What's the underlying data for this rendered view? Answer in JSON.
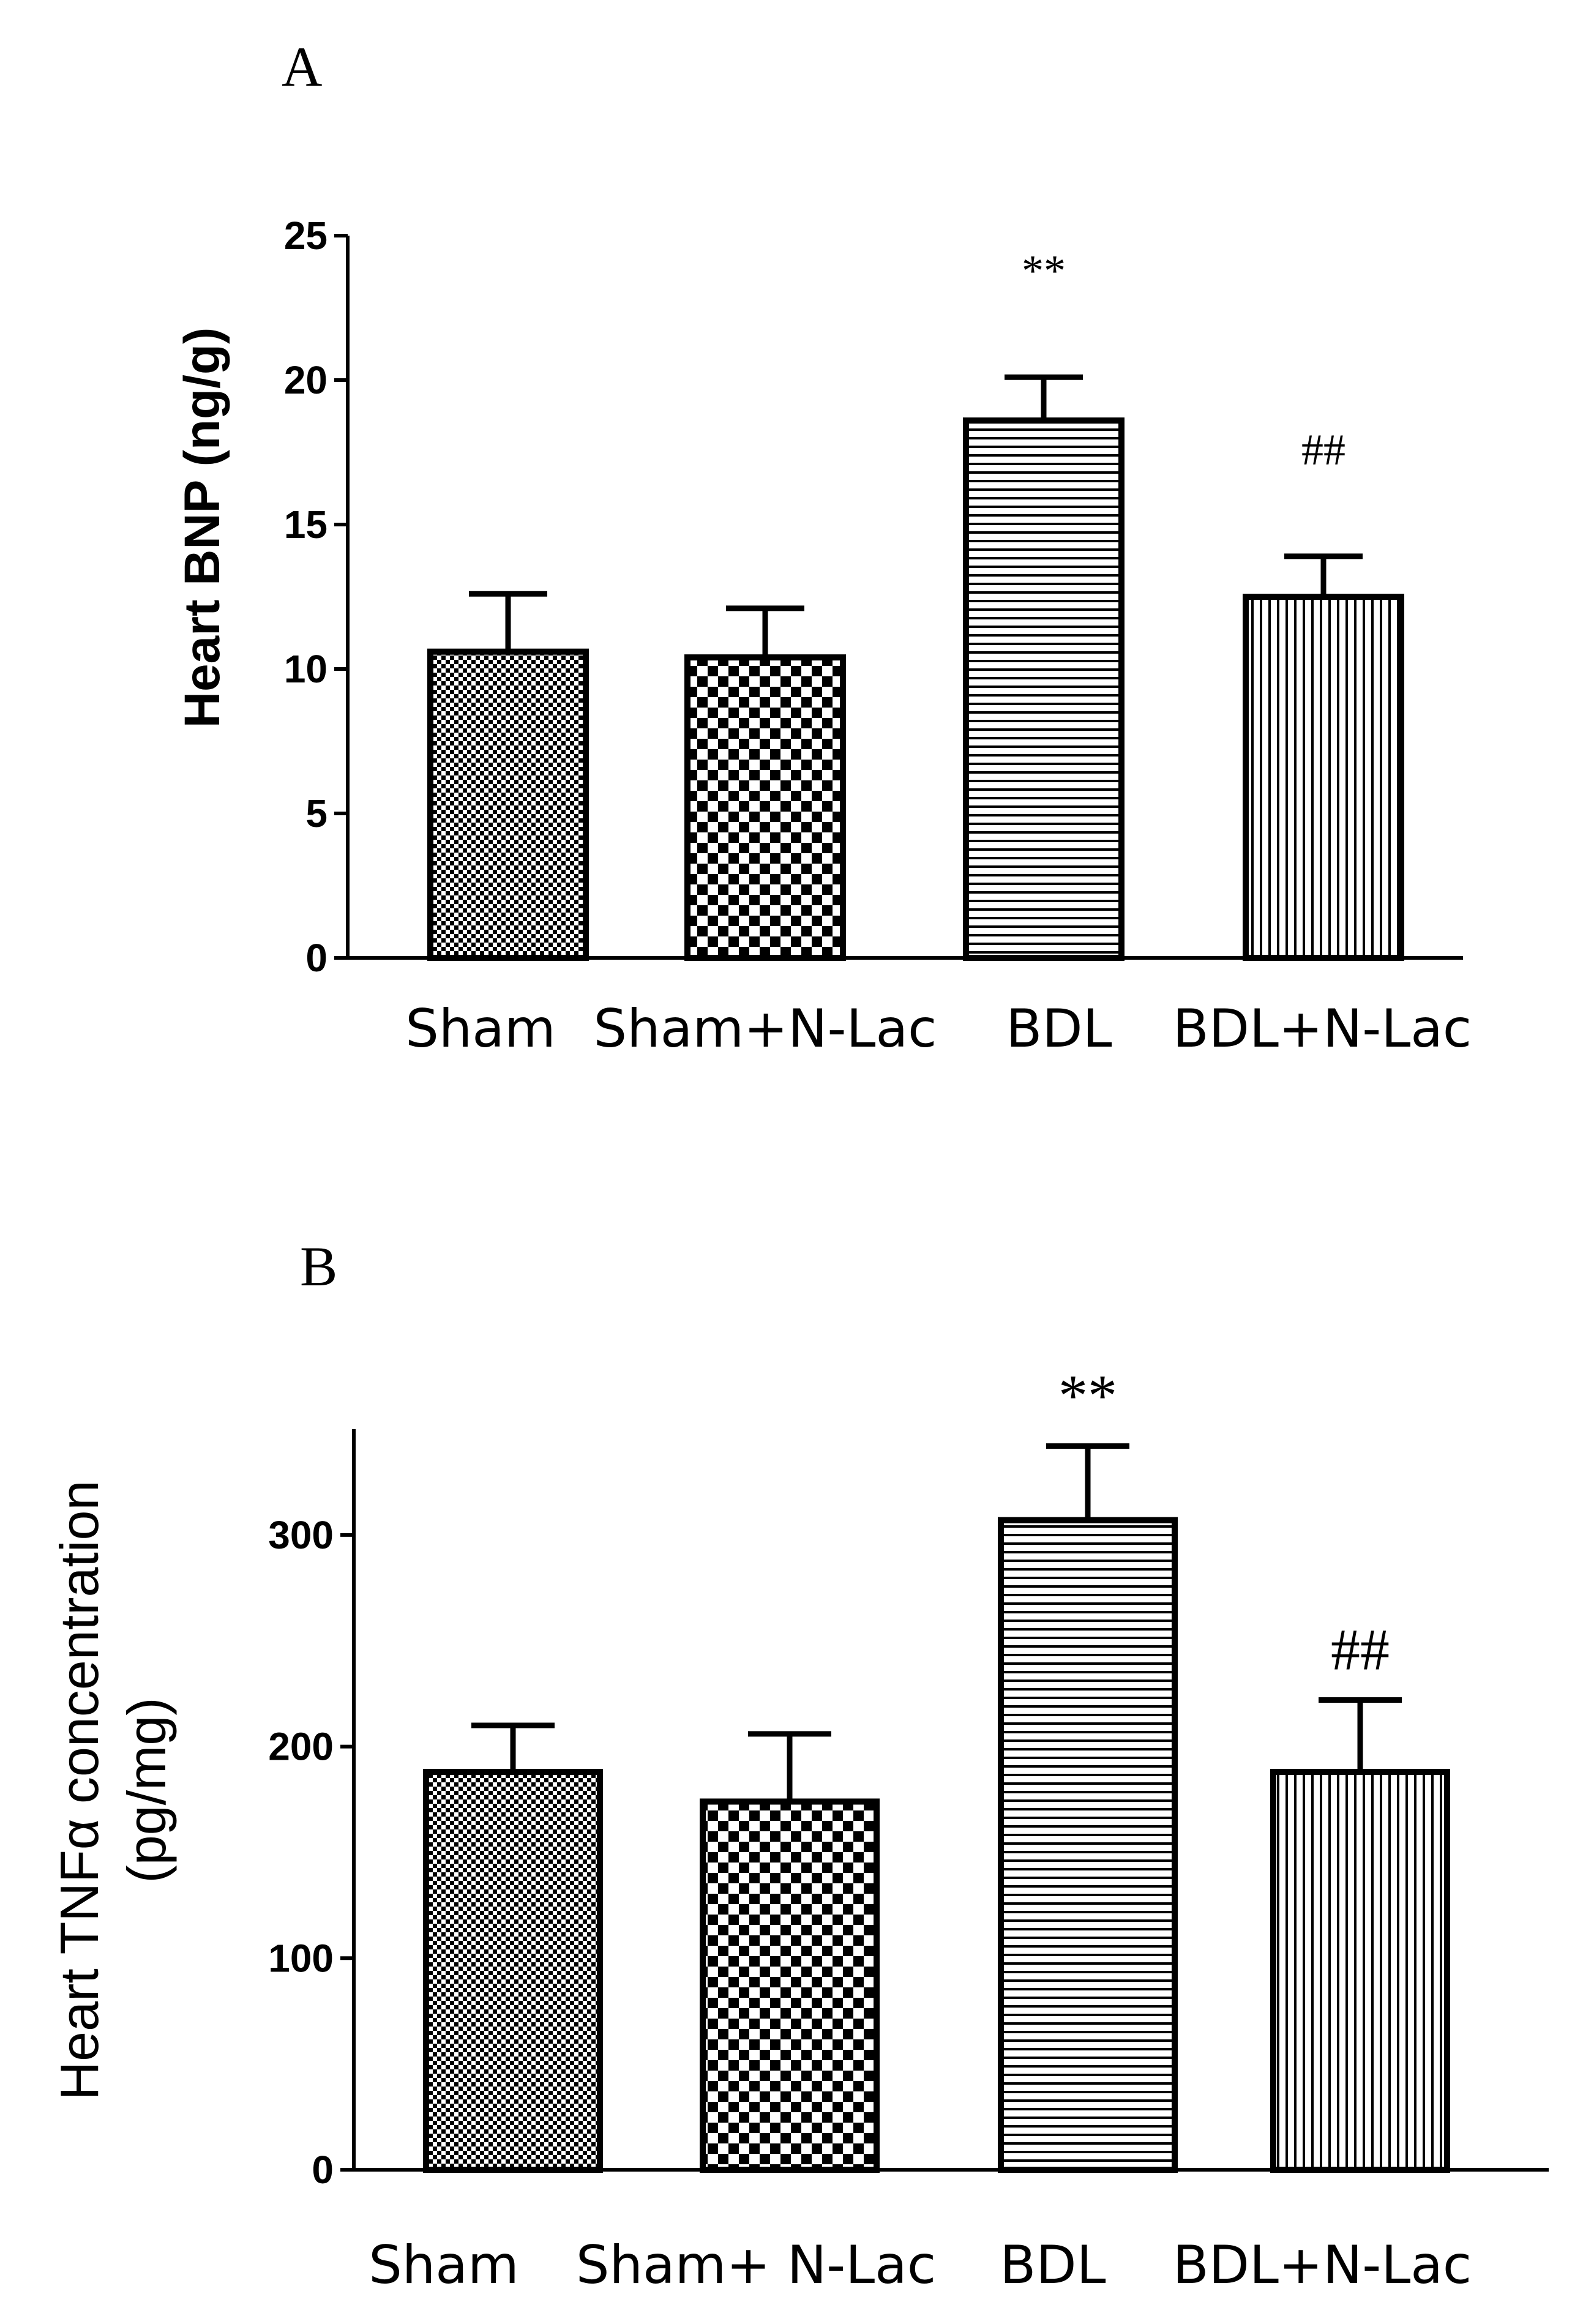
{
  "chart_data": [
    {
      "type": "bar",
      "panel": "A",
      "ylabel": "Heart BNP (ng/g)",
      "xlabel": "",
      "ylim": [
        0,
        25
      ],
      "yticks": [
        0,
        5,
        10,
        15,
        20,
        25
      ],
      "categories": [
        "Sham",
        "Sham+N-Lac",
        "BDL",
        "BDL+N-Lac"
      ],
      "values": [
        10.6,
        10.4,
        18.6,
        12.5
      ],
      "errors": [
        2.0,
        1.7,
        1.5,
        1.4
      ],
      "patterns": [
        "fine-check",
        "coarse-check",
        "horizontal-lines",
        "vertical-lines"
      ],
      "annotations": [
        "",
        "",
        "**",
        "##"
      ]
    },
    {
      "type": "bar",
      "panel": "B",
      "ylabel_line1": "Heart TNFα concentration",
      "ylabel_line2": "(pg/mg)",
      "xlabel": "",
      "ylim": [
        0,
        350
      ],
      "yticks": [
        0,
        100,
        200,
        300
      ],
      "categories": [
        "Sham",
        "Sham+ N-Lac",
        "BDL",
        "BDL+N-Lac"
      ],
      "values": [
        188,
        174,
        307,
        188
      ],
      "errors": [
        22,
        32,
        35,
        34
      ],
      "patterns": [
        "fine-check",
        "coarse-check",
        "horizontal-lines",
        "vertical-lines"
      ],
      "annotations": [
        "",
        "",
        "**",
        "##"
      ]
    }
  ]
}
